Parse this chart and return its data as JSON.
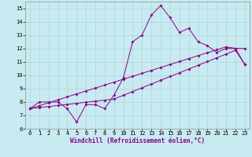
{
  "xlabel": "Windchill (Refroidissement éolien,°C)",
  "background_color": "#c8eaf0",
  "grid_color": "#a8d8d8",
  "line_color": "#880088",
  "x_data": [
    0,
    1,
    2,
    3,
    4,
    5,
    6,
    7,
    8,
    9,
    10,
    11,
    12,
    13,
    14,
    15,
    16,
    17,
    18,
    19,
    20,
    21,
    22,
    23
  ],
  "y_main": [
    7.5,
    8.0,
    8.0,
    8.0,
    7.5,
    6.5,
    7.8,
    7.8,
    7.5,
    8.5,
    9.8,
    12.5,
    13.0,
    14.5,
    15.2,
    14.3,
    13.2,
    13.5,
    12.5,
    12.2,
    11.7,
    12.0,
    12.0,
    10.8
  ],
  "y_line1": [
    7.5,
    7.72,
    7.94,
    8.16,
    8.38,
    8.6,
    8.82,
    9.04,
    9.26,
    9.48,
    9.7,
    9.92,
    10.14,
    10.36,
    10.58,
    10.8,
    11.02,
    11.24,
    11.46,
    11.68,
    11.9,
    12.12,
    12.0,
    12.0
  ],
  "y_line2": [
    7.5,
    7.58,
    7.66,
    7.74,
    7.82,
    7.9,
    7.98,
    8.06,
    8.14,
    8.22,
    8.5,
    8.78,
    9.06,
    9.34,
    9.62,
    9.9,
    10.18,
    10.46,
    10.74,
    11.02,
    11.3,
    11.58,
    11.86,
    10.8
  ],
  "ylim": [
    6,
    15.5
  ],
  "xlim": [
    -0.5,
    23.5
  ],
  "yticks": [
    6,
    7,
    8,
    9,
    10,
    11,
    12,
    13,
    14,
    15
  ],
  "xticks": [
    0,
    1,
    2,
    3,
    4,
    5,
    6,
    7,
    8,
    9,
    10,
    11,
    12,
    13,
    14,
    15,
    16,
    17,
    18,
    19,
    20,
    21,
    22,
    23
  ],
  "markersize": 2.0,
  "linewidth": 0.7,
  "fontsize_tick": 5.0,
  "fontsize_label": 5.5
}
